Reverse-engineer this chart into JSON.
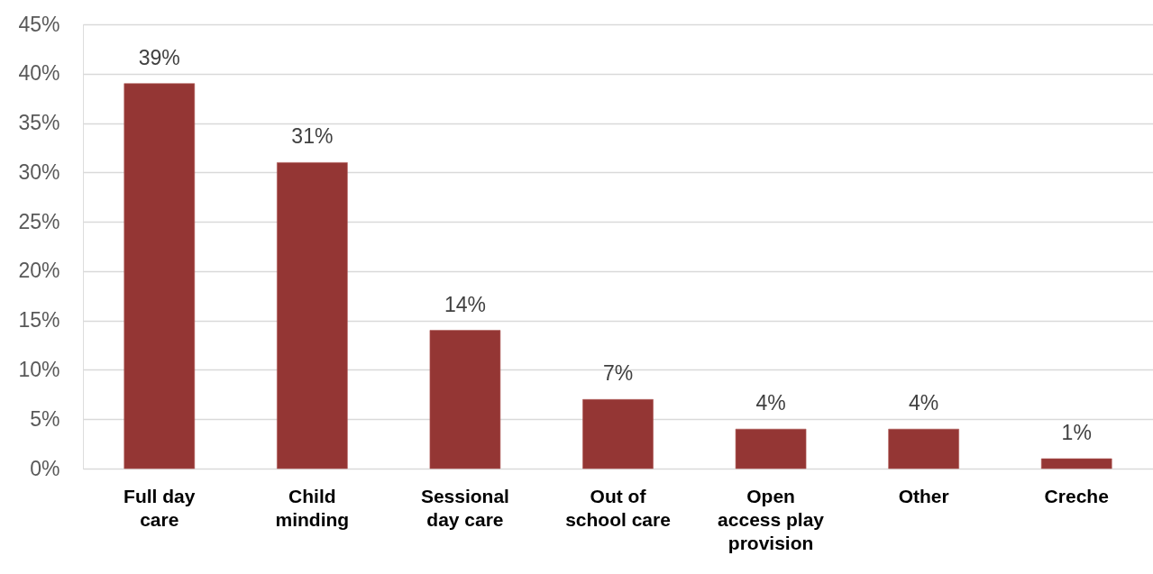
{
  "chart_data": {
    "type": "bar",
    "categories": [
      "Full day care",
      "Child minding",
      "Sessional day care",
      "Out of school care",
      "Open access play provision",
      "Other",
      "Creche"
    ],
    "values": [
      39,
      31,
      14,
      7,
      4,
      4,
      1
    ],
    "value_labels": [
      "39%",
      "31%",
      "14%",
      "7%",
      "4%",
      "4%",
      "1%"
    ],
    "color": "#943634",
    "ylim": [
      0,
      45
    ],
    "yticks": [
      {
        "value": 0,
        "label": "0%"
      },
      {
        "value": 5,
        "label": "5%"
      },
      {
        "value": 10,
        "label": "10%"
      },
      {
        "value": 15,
        "label": "15%"
      },
      {
        "value": 20,
        "label": "20%"
      },
      {
        "value": 25,
        "label": "25%"
      },
      {
        "value": 30,
        "label": "30%"
      },
      {
        "value": 35,
        "label": "35%"
      },
      {
        "value": 40,
        "label": "40%"
      },
      {
        "value": 45,
        "label": "45%"
      }
    ],
    "grid": "y"
  }
}
